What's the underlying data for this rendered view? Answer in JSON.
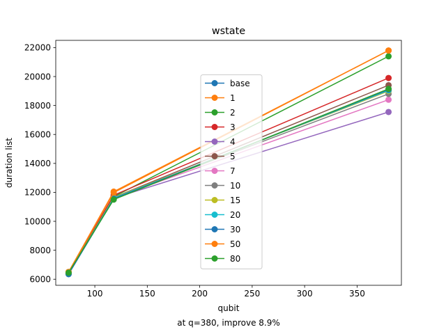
{
  "chart_data": {
    "type": "line",
    "title": "wstate",
    "xlabel": "qubit",
    "ylabel": "duration list",
    "caption": "at q=380, improve 8.9%",
    "x": [
      75,
      118,
      380
    ],
    "xlim": [
      62.75,
      392.25
    ],
    "ylim": [
      5580,
      22500
    ],
    "xticks": [
      100,
      150,
      200,
      250,
      300,
      350
    ],
    "yticks": [
      6000,
      8000,
      10000,
      12000,
      14000,
      16000,
      18000,
      20000,
      22000
    ],
    "grid": false,
    "legend_position": "center",
    "series": [
      {
        "name": "base",
        "color": "#1f77b4",
        "values": [
          6350,
          11550,
          19100
        ]
      },
      {
        "name": "1",
        "color": "#ff7f0e",
        "values": [
          6500,
          12050,
          21800
        ]
      },
      {
        "name": "2",
        "color": "#2ca02c",
        "values": [
          6400,
          11700,
          21400
        ]
      },
      {
        "name": "3",
        "color": "#d62728",
        "values": [
          6450,
          11800,
          19900
        ]
      },
      {
        "name": "4",
        "color": "#9467bd",
        "values": [
          6400,
          11600,
          17550
        ]
      },
      {
        "name": "5",
        "color": "#8c564b",
        "values": [
          6420,
          11650,
          19400
        ]
      },
      {
        "name": "7",
        "color": "#e377c2",
        "values": [
          6380,
          11620,
          18400
        ]
      },
      {
        "name": "10",
        "color": "#7f7f7f",
        "values": [
          6390,
          11630,
          18800
        ]
      },
      {
        "name": "15",
        "color": "#bcbd22",
        "values": [
          6410,
          11640,
          19000
        ]
      },
      {
        "name": "20",
        "color": "#17becf",
        "values": [
          6400,
          11600,
          19050
        ]
      },
      {
        "name": "30",
        "color": "#1f77b4",
        "values": [
          6360,
          11560,
          19100
        ]
      },
      {
        "name": "50",
        "color": "#ff7f0e",
        "values": [
          6500,
          11980,
          21800
        ]
      },
      {
        "name": "80",
        "color": "#2ca02c",
        "values": [
          6450,
          11500,
          19150
        ]
      }
    ]
  }
}
